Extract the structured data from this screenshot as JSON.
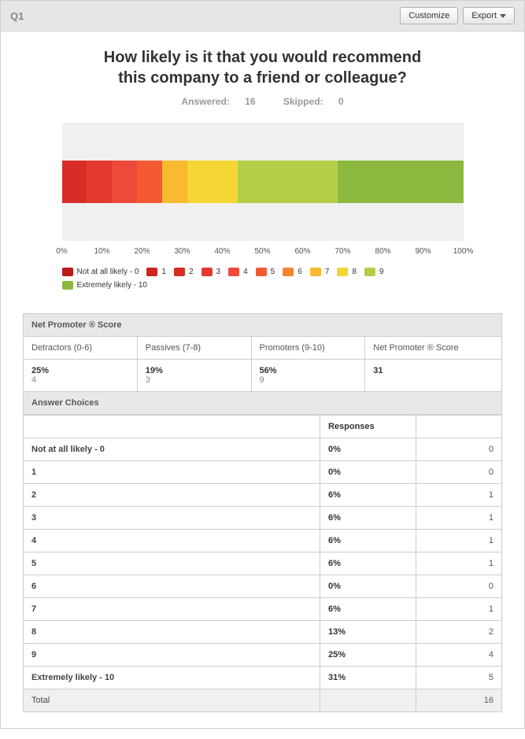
{
  "header": {
    "question_id": "Q1",
    "customize": "Customize",
    "export": "Export"
  },
  "question": {
    "title_line1": "How likely is it that you would recommend",
    "title_line2": "this company to a friend or colleague?",
    "answered_label": "Answered:",
    "answered_count": "16",
    "skipped_label": "Skipped:",
    "skipped_count": "0"
  },
  "chart": {
    "background": "#f0f0f0",
    "segments": [
      {
        "label": "Not at all likely - 0",
        "pct": 0,
        "color": "#b81c1a"
      },
      {
        "label": "1",
        "pct": 0,
        "color": "#ce2520"
      },
      {
        "label": "2",
        "pct": 6.25,
        "color": "#d62e27"
      },
      {
        "label": "3",
        "pct": 6.25,
        "color": "#e33a2f"
      },
      {
        "label": "4",
        "pct": 6.25,
        "color": "#ee4a3a"
      },
      {
        "label": "5",
        "pct": 6.25,
        "color": "#f45a31"
      },
      {
        "label": "6",
        "pct": 0,
        "color": "#f8852e"
      },
      {
        "label": "7",
        "pct": 6.25,
        "color": "#f9b931"
      },
      {
        "label": "8",
        "pct": 12.5,
        "color": "#f6d634"
      },
      {
        "label": "9",
        "pct": 25,
        "color": "#b3cf4a"
      },
      {
        "label": "Extremely likely - 10",
        "pct": 31.25,
        "color": "#8bb93f"
      }
    ],
    "ticks": [
      "0%",
      "10%",
      "20%",
      "30%",
      "40%",
      "50%",
      "60%",
      "70%",
      "80%",
      "90%",
      "100%"
    ]
  },
  "nps": {
    "title": "Net Promoter ® Score",
    "cols": [
      {
        "head": "Detractors (0-6)",
        "pct": "25%",
        "cnt": "4"
      },
      {
        "head": "Passives (7-8)",
        "pct": "19%",
        "cnt": "3"
      },
      {
        "head": "Promoters (9-10)",
        "pct": "56%",
        "cnt": "9"
      },
      {
        "head": "Net Promoter ® Score",
        "pct": "31",
        "cnt": ""
      }
    ]
  },
  "choices": {
    "title": "Answer Choices",
    "responses_head": "Responses",
    "rows": [
      {
        "label": "Not at all likely - 0",
        "pct": "0%",
        "cnt": "0"
      },
      {
        "label": "1",
        "pct": "0%",
        "cnt": "0"
      },
      {
        "label": "2",
        "pct": "6%",
        "cnt": "1"
      },
      {
        "label": "3",
        "pct": "6%",
        "cnt": "1"
      },
      {
        "label": "4",
        "pct": "6%",
        "cnt": "1"
      },
      {
        "label": "5",
        "pct": "6%",
        "cnt": "1"
      },
      {
        "label": "6",
        "pct": "0%",
        "cnt": "0"
      },
      {
        "label": "7",
        "pct": "6%",
        "cnt": "1"
      },
      {
        "label": "8",
        "pct": "13%",
        "cnt": "2"
      },
      {
        "label": "9",
        "pct": "25%",
        "cnt": "4"
      },
      {
        "label": "Extremely likely - 10",
        "pct": "31%",
        "cnt": "5"
      }
    ],
    "total_label": "Total",
    "total_count": "16"
  }
}
